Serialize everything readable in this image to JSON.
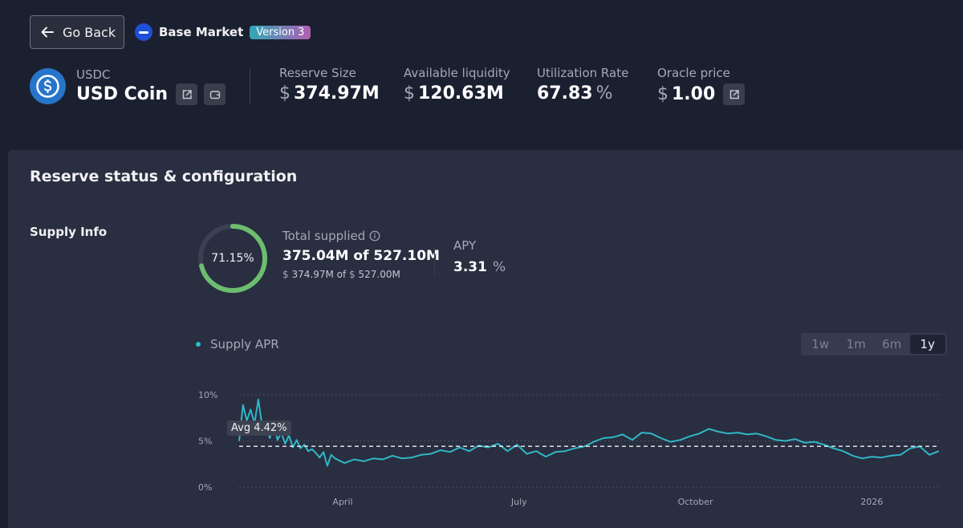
{
  "header": {
    "back_label": "Go Back",
    "market_name": "Base Market",
    "version_badge": "Version 3"
  },
  "asset": {
    "symbol": "USDC",
    "name": "USD Coin"
  },
  "stats": {
    "reserve_size": {
      "label": "Reserve Size",
      "currency": "$",
      "value": "374.97M"
    },
    "available_liquidity": {
      "label": "Available liquidity",
      "currency": "$",
      "value": "120.63M"
    },
    "utilization_rate": {
      "label": "Utilization Rate",
      "value": "67.83",
      "unit": "%"
    },
    "oracle_price": {
      "label": "Oracle price",
      "currency": "$",
      "value": "1.00"
    }
  },
  "section": {
    "title": "Reserve status & configuration",
    "supply_info_label": "Supply Info"
  },
  "supply": {
    "percent_label": "71.15%",
    "percent": 71.15,
    "total_supplied_label": "Total supplied",
    "total_supplied_value": "375.04M of 527.10M",
    "usd_supplied": "374.97M",
    "usd_cap": "527.00M",
    "usd_of": "of",
    "currency": "$",
    "apy_label": "APY",
    "apy_value": "3.31",
    "apy_unit": "%"
  },
  "colors": {
    "accent": "#2fb8c6",
    "donut_fill": "#6cbd6f",
    "donut_track": "#3c4152",
    "background": "#1b2030",
    "card": "#292e41"
  },
  "chart_tabs": [
    "1w",
    "1m",
    "6m",
    "1y"
  ],
  "chart_tabs_active": "1y",
  "chart_data": {
    "type": "line",
    "title": "",
    "series_name": "Supply APR",
    "y_ticks": [
      "10%",
      "5%",
      "0%"
    ],
    "x_ticks": [
      "April",
      "July",
      "October",
      "2026"
    ],
    "ylim": [
      0,
      10
    ],
    "xlim": [
      0,
      365
    ],
    "x_tick_positions": [
      54,
      146,
      238,
      330
    ],
    "average": 4.42,
    "average_label": "Avg 4.42%",
    "x": [
      0,
      2,
      4,
      6,
      8,
      10,
      12,
      14,
      16,
      18,
      20,
      22,
      24,
      26,
      28,
      30,
      32,
      34,
      36,
      38,
      40,
      42,
      44,
      46,
      48,
      50,
      55,
      60,
      65,
      70,
      75,
      80,
      85,
      90,
      95,
      100,
      105,
      110,
      115,
      120,
      125,
      130,
      135,
      140,
      145,
      150,
      155,
      160,
      165,
      170,
      175,
      180,
      185,
      190,
      195,
      200,
      205,
      210,
      215,
      220,
      225,
      230,
      235,
      240,
      245,
      250,
      255,
      260,
      265,
      270,
      275,
      280,
      285,
      290,
      295,
      300,
      305,
      310,
      315,
      320,
      325,
      330,
      335,
      340,
      345,
      350,
      355,
      360,
      365
    ],
    "values": [
      5.0,
      8.9,
      7.2,
      8.4,
      6.9,
      9.5,
      6.6,
      7.0,
      5.3,
      6.8,
      5.1,
      5.9,
      4.7,
      5.6,
      4.3,
      5.1,
      4.2,
      4.6,
      3.9,
      4.1,
      3.7,
      3.2,
      3.8,
      2.3,
      3.5,
      3.1,
      2.6,
      3.0,
      2.8,
      3.1,
      3.0,
      3.4,
      3.1,
      3.2,
      3.5,
      3.6,
      4.0,
      3.8,
      4.3,
      3.9,
      4.5,
      4.3,
      4.7,
      3.9,
      4.6,
      3.6,
      3.9,
      3.3,
      3.8,
      3.9,
      4.2,
      4.4,
      4.9,
      5.3,
      5.4,
      5.7,
      5.1,
      5.9,
      5.8,
      5.3,
      4.9,
      5.1,
      5.5,
      5.8,
      6.3,
      6.0,
      5.8,
      5.9,
      5.7,
      5.8,
      5.5,
      5.1,
      5.0,
      5.2,
      4.8,
      4.9,
      4.6,
      4.2,
      3.9,
      3.4,
      3.1,
      3.3,
      3.2,
      3.4,
      3.5,
      4.2,
      4.4,
      3.5,
      3.9
    ]
  }
}
